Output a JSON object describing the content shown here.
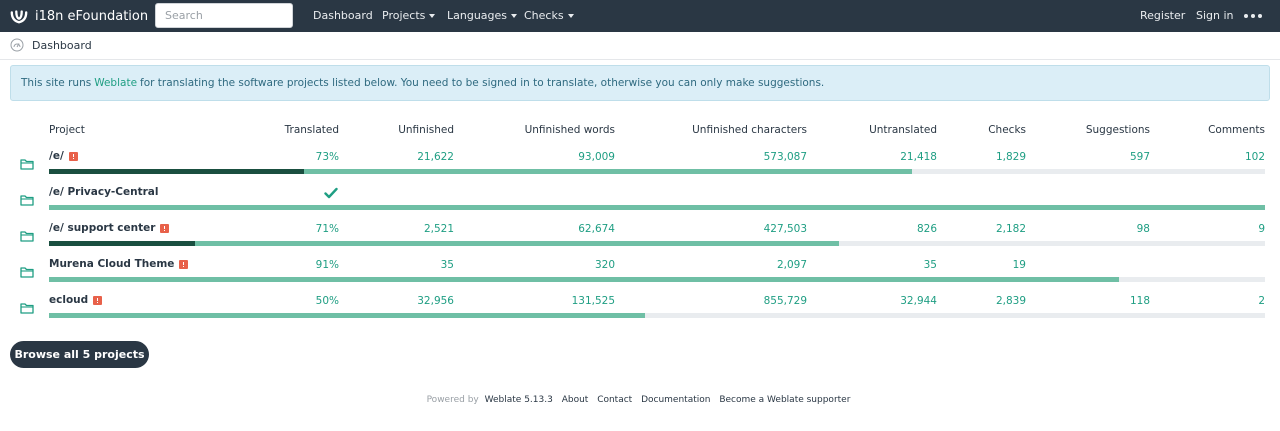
{
  "navbar": {
    "brand": "i18n eFoundation",
    "search_placeholder": "Search",
    "links": {
      "dashboard": "Dashboard",
      "projects": "Projects",
      "languages": "Languages",
      "checks": "Checks",
      "register": "Register",
      "signin": "Sign in"
    }
  },
  "breadcrumb": {
    "label": "Dashboard"
  },
  "alert": {
    "prefix": "This site runs",
    "link": "Weblate",
    "suffix": "for translating the software projects listed below. You need to be signed in to translate, otherwise you can only make suggestions."
  },
  "table": {
    "headers": {
      "project": "Project",
      "translated": "Translated",
      "unfinished": "Unfinished",
      "unfinished_words": "Unfinished words",
      "unfinished_characters": "Unfinished characters",
      "untranslated": "Untranslated",
      "checks": "Checks",
      "suggestions": "Suggestions",
      "comments": "Comments"
    },
    "rows": [
      {
        "name": "/e/",
        "alert": true,
        "translated": "73%",
        "unfinished": "21,622",
        "unfinished_words": "93,009",
        "unfinished_characters": "573,087",
        "untranslated": "21,418",
        "checks": "1,829",
        "suggestions": "597",
        "comments": "102",
        "progress_dark": 0.21,
        "progress_green": 0.71
      },
      {
        "name": "/e/ Privacy-Central",
        "alert": false,
        "translated": "",
        "complete": true,
        "unfinished": "",
        "unfinished_words": "",
        "unfinished_characters": "",
        "untranslated": "",
        "checks": "",
        "suggestions": "",
        "comments": "",
        "progress_dark": 0,
        "progress_green": 1.0
      },
      {
        "name": "/e/ support center",
        "alert": true,
        "translated": "71%",
        "unfinished": "2,521",
        "unfinished_words": "62,674",
        "unfinished_characters": "427,503",
        "untranslated": "826",
        "checks": "2,182",
        "suggestions": "98",
        "comments": "9",
        "progress_dark": 0.12,
        "progress_green": 0.65
      },
      {
        "name": "Murena Cloud Theme",
        "alert": true,
        "translated": "91%",
        "unfinished": "35",
        "unfinished_words": "320",
        "unfinished_characters": "2,097",
        "untranslated": "35",
        "checks": "19",
        "suggestions": "",
        "comments": "",
        "progress_dark": 0,
        "progress_green": 0.88
      },
      {
        "name": "ecloud",
        "alert": true,
        "translated": "50%",
        "unfinished": "32,956",
        "unfinished_words": "131,525",
        "unfinished_characters": "855,729",
        "untranslated": "32,944",
        "checks": "2,839",
        "suggestions": "118",
        "comments": "2",
        "progress_dark": 0,
        "progress_green": 0.49
      }
    ]
  },
  "browse_button": "Browse all 5 projects",
  "footer": {
    "powered_by": "Powered by",
    "version": "Weblate 5.13.3",
    "about": "About",
    "contact": "Contact",
    "documentation": "Documentation",
    "supporter": "Become a Weblate supporter"
  },
  "colors": {
    "navbar": "#2a3744",
    "accent": "#1f9e83",
    "progress": "#6fbfa5",
    "progress_dark": "#1a4f40",
    "alert_badge": "#e8614a"
  }
}
